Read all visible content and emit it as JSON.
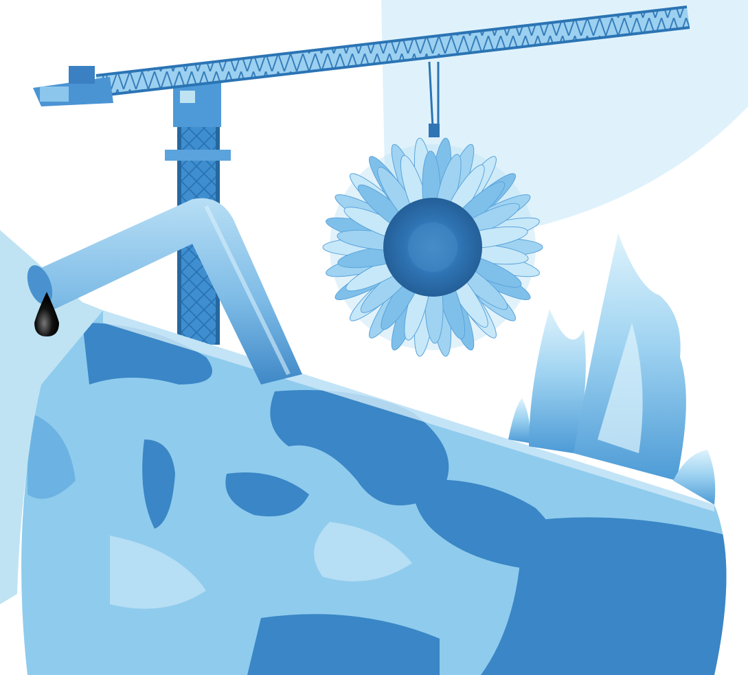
{
  "artwork": {
    "style": "monochrome blue photo collage",
    "colors": {
      "background": "#ffffff",
      "light_blue_shape": "#dff2fb",
      "mid_blue_shape": "#bfe3f3",
      "globe_ocean": "#3a86c6",
      "globe_land": "#8fcbed",
      "globe_land_light": "#b6def4",
      "crane_steel": "#3f8fd0",
      "crane_dark": "#25679f",
      "pipe": "#7fbde6",
      "pipe_shade": "#4a92cf",
      "oil_drop": "#111111",
      "sunflower_petals": "#9fd3f1",
      "sunflower_center": "#2f74b4",
      "flames": "#8ccbee",
      "flames_light": "#cdebf9"
    },
    "elements": [
      "tower-crane",
      "sunflower-on-crane-hook",
      "bent-pipe",
      "oil-drop",
      "cut-earth-globe",
      "flames"
    ]
  }
}
